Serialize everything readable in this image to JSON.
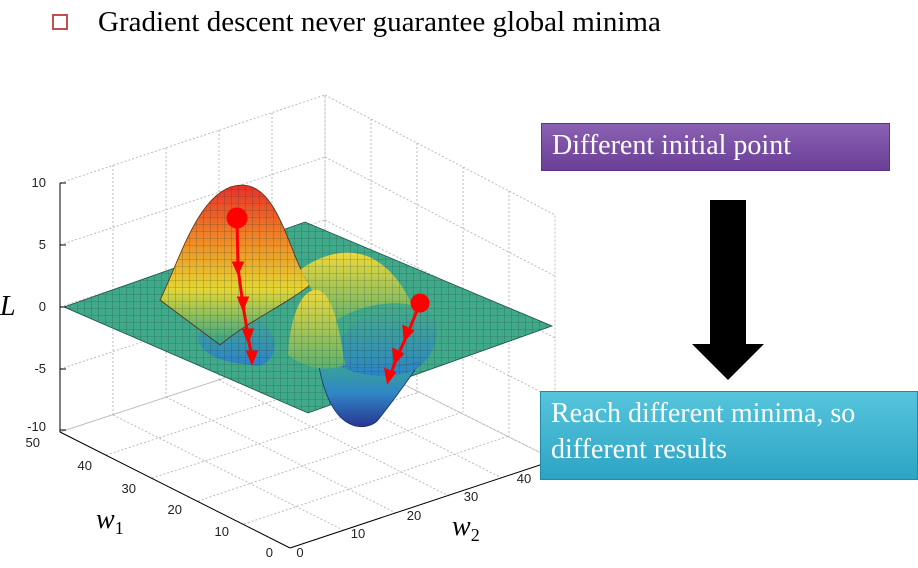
{
  "bullet": {
    "text": "Gradient descent never guarantee global minima",
    "color": "#c0504d"
  },
  "plot": {
    "z_axis_label": "L",
    "x_axis_label": "w",
    "x_axis_sub": "1",
    "y_axis_label": "w",
    "y_axis_sub": "2",
    "z_ticks": [
      "10",
      "5",
      "0",
      "-5",
      "-10"
    ],
    "x_ticks": [
      "50",
      "40",
      "30",
      "20",
      "10",
      "0"
    ],
    "y_ticks": [
      "0",
      "10",
      "20",
      "30",
      "40"
    ],
    "path_color": "#ff0000"
  },
  "annotations": {
    "top_box": "Different initial point",
    "bottom_box": "Reach different minima, so different results",
    "top_color": "#7b4fa6",
    "bottom_color": "#3bb3d1",
    "arrow_icon": "down-arrow-icon"
  }
}
